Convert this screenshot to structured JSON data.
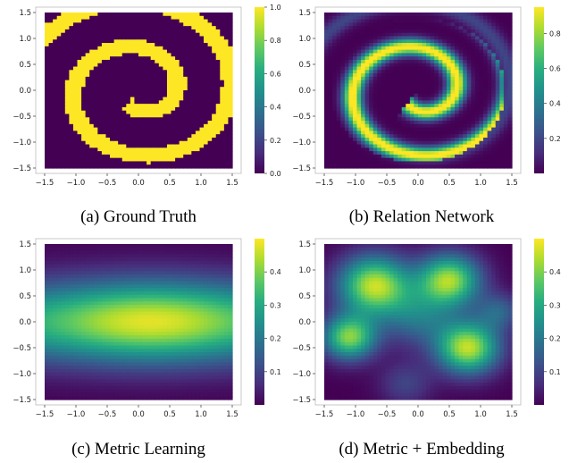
{
  "chart_data": [
    {
      "type": "heatmap",
      "id": "a",
      "caption": "(a) Ground Truth",
      "xlim": [
        -1.5,
        1.5
      ],
      "ylim": [
        -1.5,
        1.5
      ],
      "xticks": [
        "−1.5",
        "−1.0",
        "−0.5",
        "0.0",
        "0.5",
        "1.0",
        "1.5"
      ],
      "yticks": [
        "1.5",
        "1.0",
        "0.5",
        "0.0",
        "−0.5",
        "−1.0",
        "−1.5"
      ],
      "colorbar_range": [
        0,
        1
      ],
      "colorbar_ticks": [
        "1.0",
        "0.8",
        "0.6",
        "0.4",
        "0.2",
        "0.0"
      ],
      "colormap": "viridis",
      "field": "binary-spiral"
    },
    {
      "type": "heatmap",
      "id": "b",
      "caption": "(b) Relation Network",
      "xlim": [
        -1.5,
        1.5
      ],
      "ylim": [
        -1.5,
        1.5
      ],
      "xticks": [
        "−1.5",
        "−1.0",
        "−0.5",
        "0.0",
        "0.5",
        "1.0",
        "1.5"
      ],
      "yticks": [
        "1.5",
        "1.0",
        "0.5",
        "0.0",
        "−0.5",
        "−1.0",
        "−1.5"
      ],
      "colorbar_range": [
        0,
        0.95
      ],
      "colorbar_ticks": [
        "0.8",
        "0.6",
        "0.4",
        "0.2"
      ],
      "colormap": "viridis",
      "field": "smooth-spiral"
    },
    {
      "type": "heatmap",
      "id": "c",
      "caption": "(c) Metric Learning",
      "xlim": [
        -1.5,
        1.5
      ],
      "ylim": [
        -1.5,
        1.5
      ],
      "xticks": [
        "−1.5",
        "−1.0",
        "−0.5",
        "0.0",
        "0.5",
        "1.0",
        "1.5"
      ],
      "yticks": [
        "1.5",
        "1.0",
        "0.5",
        "0.0",
        "−0.5",
        "−1.0",
        "−1.5"
      ],
      "colorbar_range": [
        0,
        0.5
      ],
      "colorbar_ticks": [
        "0.4",
        "0.3",
        "0.2",
        "0.1"
      ],
      "colormap": "viridis",
      "field": "horizontal-band"
    },
    {
      "type": "heatmap",
      "id": "d",
      "caption": "(d) Metric + Embedding",
      "xlim": [
        -1.5,
        1.5
      ],
      "ylim": [
        -1.5,
        1.5
      ],
      "xticks": [
        "−1.5",
        "−1.0",
        "−0.5",
        "0.0",
        "0.5",
        "1.0",
        "1.5"
      ],
      "yticks": [
        "1.5",
        "1.0",
        "0.5",
        "0.0",
        "−0.5",
        "−1.0",
        "−1.5"
      ],
      "colorbar_range": [
        0,
        0.5
      ],
      "colorbar_ticks": [
        "0.4",
        "0.3",
        "0.2",
        "0.1"
      ],
      "colormap": "viridis",
      "field": "blob-pattern"
    }
  ]
}
